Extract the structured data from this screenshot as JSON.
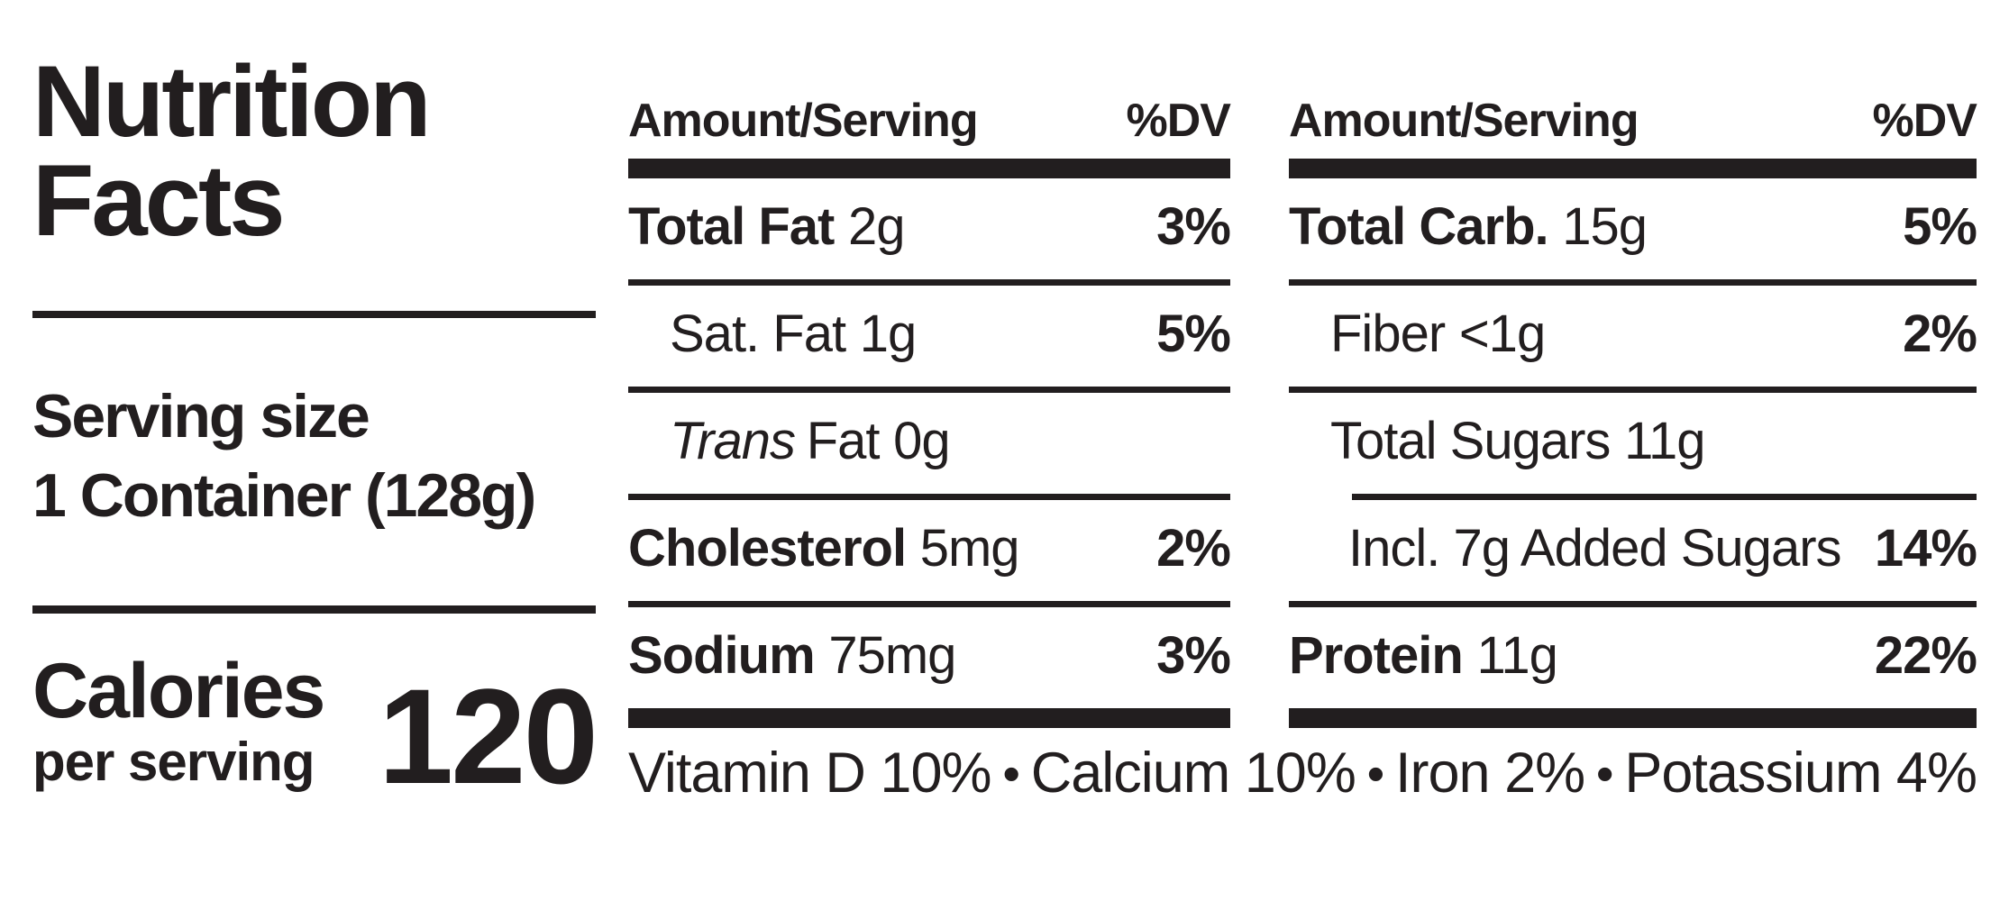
{
  "title": {
    "line1": "Nutrition",
    "line2": "Facts"
  },
  "serving": {
    "label": "Serving size",
    "value": "1 Container (128g)"
  },
  "calories": {
    "label_line1": "Calories",
    "label_line2": "per serving",
    "value": "120"
  },
  "columns": {
    "left_panel": {
      "header": {
        "amount": "Amount/Serving",
        "dv": "%DV"
      },
      "rows": [
        {
          "name": "Total Fat",
          "value": "2g",
          "dv": "3%"
        },
        {
          "name": "Sat. Fat",
          "value": "1g",
          "dv": "5%"
        },
        {
          "name_italic": "Trans",
          "name": "Fat",
          "value": "0g",
          "dv": ""
        },
        {
          "name": "Cholesterol",
          "value": "5mg",
          "dv": "2%"
        },
        {
          "name": "Sodium",
          "value": "75mg",
          "dv": "3%"
        }
      ]
    },
    "right_panel": {
      "header": {
        "amount": "Amount/Serving",
        "dv": "%DV"
      },
      "rows": [
        {
          "name": "Total Carb.",
          "value": "15g",
          "dv": "5%"
        },
        {
          "name": "Fiber",
          "value": "<1g",
          "dv": "2%"
        },
        {
          "name": "Total Sugars",
          "value": "11g",
          "dv": ""
        },
        {
          "name": "Incl. 7g Added Sugars",
          "value": "",
          "dv": "14%"
        },
        {
          "name": "Protein",
          "value": "11g",
          "dv": "22%"
        }
      ]
    }
  },
  "footer": {
    "bullet": "•",
    "items": [
      "Vitamin D 10%",
      "Calcium 10%",
      "Iron 2%",
      "Potassium 4%"
    ]
  },
  "colors": {
    "ink": "#221e1f",
    "background": "#ffffff"
  }
}
